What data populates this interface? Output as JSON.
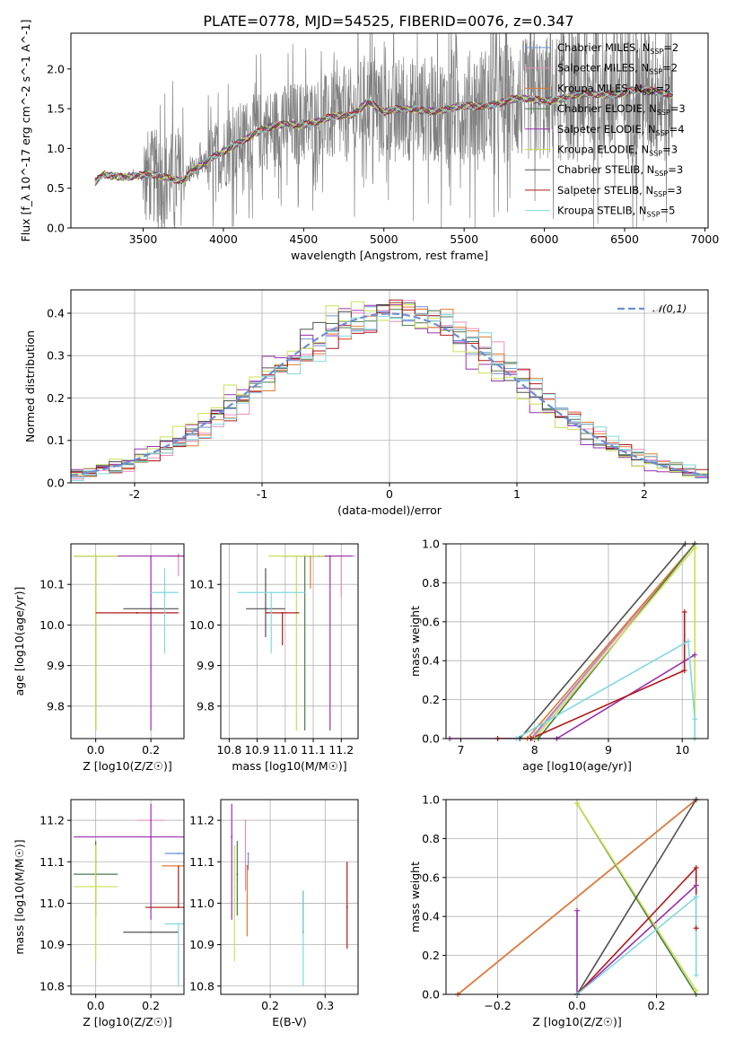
{
  "figure_title": "PLATE=0778, MJD=54525, FIBERID=0076, z=0.347",
  "models": [
    {
      "label": "Chabrier MILES, N",
      "sub": "SSP",
      "n": "=2",
      "color": "#6b8fd6"
    },
    {
      "label": "Salpeter MILES, N",
      "sub": "SSP",
      "n": "=2",
      "color": "#e88cc0"
    },
    {
      "label": "Kroupa MILES, N",
      "sub": "SSP",
      "n": "=2",
      "color": "#e07a2e"
    },
    {
      "label": "Chabrier ELODIE, N",
      "sub": "SSP",
      "n": "=3",
      "color": "#4a7a4a"
    },
    {
      "label": "Salpeter ELODIE, N",
      "sub": "SSP",
      "n": "=4",
      "color": "#9b30b0"
    },
    {
      "label": "Kroupa ELODIE, N",
      "sub": "SSP",
      "n": "=3",
      "color": "#c8e050"
    },
    {
      "label": "Chabrier STELIB, N",
      "sub": "SSP",
      "n": "=3",
      "color": "#505050"
    },
    {
      "label": "Salpeter STELIB, N",
      "sub": "SSP",
      "n": "=3",
      "color": "#b01818"
    },
    {
      "label": "Kroupa STELIB, N",
      "sub": "SSP",
      "n": "=5",
      "color": "#80d8e0"
    }
  ],
  "chart_data": [
    {
      "id": "spectrum",
      "type": "line",
      "xlabel": "wavelength [Angstrom, rest frame]",
      "ylabel": "Flux [f_λ 10^-17 erg cm^-2 s^-1 A^-1]",
      "xlim": [
        3050,
        7020
      ],
      "ylim": [
        0,
        2.45
      ],
      "xticks": [
        3500,
        4000,
        4500,
        5000,
        5500,
        6000,
        6500,
        7000
      ],
      "yticks": [
        0.0,
        0.5,
        1.0,
        1.5,
        2.0
      ],
      "data_color": "#808080",
      "data_range": [
        3200,
        6800
      ],
      "continuum": [
        [
          3200,
          0.55
        ],
        [
          3250,
          0.68
        ],
        [
          3400,
          0.66
        ],
        [
          3600,
          0.64
        ],
        [
          3750,
          0.62
        ],
        [
          3800,
          0.72
        ],
        [
          3900,
          0.82
        ],
        [
          4000,
          0.95
        ],
        [
          4100,
          1.1
        ],
        [
          4200,
          1.2
        ],
        [
          4400,
          1.3
        ],
        [
          4600,
          1.35
        ],
        [
          4800,
          1.42
        ],
        [
          4900,
          1.62
        ],
        [
          5000,
          1.45
        ],
        [
          5200,
          1.5
        ],
        [
          5400,
          1.48
        ],
        [
          5600,
          1.55
        ],
        [
          5800,
          1.6
        ],
        [
          6000,
          1.62
        ],
        [
          6200,
          1.65
        ],
        [
          6400,
          1.7
        ],
        [
          6600,
          1.72
        ],
        [
          6800,
          1.7
        ]
      ],
      "legend_location": "upper right"
    },
    {
      "id": "residuals",
      "type": "histogram",
      "xlabel": "(data-model)/error",
      "ylabel": "Normed distribution",
      "xlim": [
        -2.5,
        2.5
      ],
      "ylim": [
        0,
        0.455
      ],
      "xticks": [
        -2,
        -1,
        0,
        1,
        2
      ],
      "yticks": [
        0.0,
        0.1,
        0.2,
        0.3,
        0.4
      ],
      "bin_width": 0.1,
      "gaussian_label": "𝒩(0,1)",
      "gaussian_color": "#6b8fd6",
      "legend_location": "upper right"
    },
    {
      "id": "age_vs_Z",
      "type": "errorbar",
      "xlabel": "Z [log10(Z/Z☉)]",
      "ylabel": "age  [log10(age/yr)]",
      "xlim": [
        -0.09,
        0.32
      ],
      "ylim": [
        9.72,
        10.2
      ],
      "xticks": [
        0.0,
        0.2
      ],
      "xtick_labels": [
        "0.0",
        "0.2"
      ],
      "yticks": [
        9.8,
        9.9,
        10.0,
        10.1
      ],
      "ytick_labels": [
        "9.8",
        "9.9",
        "10.0",
        "10.1"
      ],
      "points": [
        {
          "model": 0,
          "x": 0.0,
          "xerr": 0.0,
          "y": 10.17,
          "yerr_low": 0.0,
          "yerr_high": 0.0
        },
        {
          "model": 1,
          "x": 0.3,
          "xerr": 0.03,
          "y": 10.17,
          "yerr_low": 0.05,
          "yerr_high": 0.005
        },
        {
          "model": 2,
          "x": 0.3,
          "xerr": 0.06,
          "y": 10.17,
          "yerr_low": 0.0,
          "yerr_high": 0.005
        },
        {
          "model": 3,
          "x": 0.0,
          "xerr": 0.08,
          "y": 10.17,
          "yerr_low": 0.43,
          "yerr_high": 0.0
        },
        {
          "model": 4,
          "x": 0.2,
          "xerr": 0.28,
          "y": 10.17,
          "yerr_low": 0.43,
          "yerr_high": 0.0
        },
        {
          "model": 5,
          "x": 0.0,
          "xerr": 0.08,
          "y": 10.17,
          "yerr_low": 0.43,
          "yerr_high": 0.0
        },
        {
          "model": 6,
          "x": 0.2,
          "xerr": 0.1,
          "y": 10.04,
          "yerr_low": 0.0,
          "yerr_high": 0.0
        },
        {
          "model": 7,
          "x": 0.15,
          "xerr": 0.15,
          "y": 10.03,
          "yerr_low": 0.0,
          "yerr_high": 0.0
        },
        {
          "model": 8,
          "x": 0.25,
          "xerr": 0.05,
          "y": 10.08,
          "yerr_low": 0.15,
          "yerr_high": 0.06
        }
      ]
    },
    {
      "id": "age_vs_mass",
      "type": "errorbar",
      "xlabel": "mass [log10(M/M☉)]",
      "ylabel": "",
      "xlim": [
        10.77,
        11.26
      ],
      "ylim": [
        9.72,
        10.2
      ],
      "xticks": [
        10.8,
        10.9,
        11.0,
        11.1,
        11.2
      ],
      "xtick_labels": [
        "10.8",
        "10.9",
        "11.0",
        "11.1",
        "11.2"
      ],
      "yticks": [
        9.8,
        9.9,
        10.0,
        10.1
      ],
      "ytick_labels": [
        "9.8",
        "9.9",
        "10.0",
        "10.1"
      ],
      "points": [
        {
          "model": 0,
          "x": 11.12,
          "xerr": 0.05,
          "y": 10.17,
          "yerr_low": 0.0,
          "yerr_high": 0.0
        },
        {
          "model": 1,
          "x": 11.2,
          "xerr": 0.05,
          "y": 10.17,
          "yerr_low": 0.1,
          "yerr_high": 0.0
        },
        {
          "model": 2,
          "x": 11.09,
          "xerr": 0.1,
          "y": 10.17,
          "yerr_low": 0.08,
          "yerr_high": 0.0
        },
        {
          "model": 3,
          "x": 11.07,
          "xerr": 0.08,
          "y": 10.17,
          "yerr_low": 0.43,
          "yerr_high": 0.0
        },
        {
          "model": 4,
          "x": 11.16,
          "xerr": 0.08,
          "y": 10.17,
          "yerr_low": 0.43,
          "yerr_high": 0.0
        },
        {
          "model": 5,
          "x": 11.04,
          "xerr": 0.1,
          "y": 10.17,
          "yerr_low": 0.43,
          "yerr_high": 0.0
        },
        {
          "model": 6,
          "x": 10.93,
          "xerr": 0.07,
          "y": 10.04,
          "yerr_low": 0.07,
          "yerr_high": 0.1
        },
        {
          "model": 7,
          "x": 10.99,
          "xerr": 0.06,
          "y": 10.03,
          "yerr_low": 0.08,
          "yerr_high": 0.0
        },
        {
          "model": 8,
          "x": 10.95,
          "xerr": 0.12,
          "y": 10.08,
          "yerr_low": 0.15,
          "yerr_high": 0.0
        }
      ]
    },
    {
      "id": "massweight_vs_age",
      "type": "line",
      "xlabel": "age  [log10(age/yr)]",
      "ylabel": "mass weight",
      "xlim": [
        6.8,
        10.35
      ],
      "ylim": [
        0,
        1.0
      ],
      "xticks": [
        7,
        8,
        9,
        10
      ],
      "xtick_labels": [
        "7",
        "8",
        "9",
        "10"
      ],
      "yticks": [
        0.0,
        0.2,
        0.4,
        0.6,
        0.8,
        1.0
      ],
      "ytick_labels": [
        "0.0",
        "0.2",
        "0.4",
        "0.6",
        "0.8",
        "1.0"
      ],
      "series": [
        {
          "model": 0,
          "x": [
            7.95,
            10.17
          ],
          "y": [
            0.0,
            1.0
          ]
        },
        {
          "model": 1,
          "x": [
            7.97,
            10.17
          ],
          "y": [
            0.0,
            1.0
          ]
        },
        {
          "model": 2,
          "x": [
            7.9,
            10.17
          ],
          "y": [
            0.0,
            1.0
          ]
        },
        {
          "model": 3,
          "x": [
            8.05,
            10.17
          ],
          "y": [
            0.0,
            1.0
          ]
        },
        {
          "model": 4,
          "x": [
            6.85,
            8.3,
            10.17
          ],
          "y": [
            0.0,
            0.0,
            0.43
          ]
        },
        {
          "model": 5,
          "x": [
            8.0,
            10.17,
            10.17
          ],
          "y": [
            0.0,
            0.98,
            0.0
          ]
        },
        {
          "model": 6,
          "x": [
            7.8,
            10.04
          ],
          "y": [
            0.0,
            1.0
          ]
        },
        {
          "model": 7,
          "x": [
            7.5,
            7.95,
            10.03,
            10.03
          ],
          "y": [
            0.0,
            0.0,
            0.35,
            0.65
          ]
        },
        {
          "model": 8,
          "x": [
            7.75,
            10.08,
            10.17,
            10.17
          ],
          "y": [
            0.0,
            0.5,
            0.1,
            0.0
          ]
        }
      ]
    },
    {
      "id": "mass_vs_Z",
      "type": "errorbar",
      "xlabel": "Z [log10(Z/Z☉)]",
      "ylabel": "mass [log10(M/M☉)]",
      "xlim": [
        -0.09,
        0.32
      ],
      "ylim": [
        10.78,
        11.25
      ],
      "xticks": [
        0.0,
        0.2
      ],
      "xtick_labels": [
        "0.0",
        "0.2"
      ],
      "yticks": [
        10.8,
        10.9,
        11.0,
        11.1,
        11.2
      ],
      "ytick_labels": [
        "10.8",
        "10.9",
        "11.0",
        "11.1",
        "11.2"
      ],
      "points": [
        {
          "model": 0,
          "x": 0.3,
          "xerr": 0.05,
          "y": 11.12,
          "yerr_low": 0.0,
          "yerr_high": 0.0
        },
        {
          "model": 1,
          "x": 0.2,
          "xerr": 0.05,
          "y": 11.2,
          "yerr_low": 0.0,
          "yerr_high": 0.0
        },
        {
          "model": 2,
          "x": 0.3,
          "xerr": 0.06,
          "y": 11.09,
          "yerr_low": 0.0,
          "yerr_high": 0.0
        },
        {
          "model": 3,
          "x": 0.0,
          "xerr": 0.08,
          "y": 11.07,
          "yerr_low": 0.1,
          "yerr_high": 0.08
        },
        {
          "model": 4,
          "x": 0.2,
          "xerr": 0.28,
          "y": 11.16,
          "yerr_low": 0.2,
          "yerr_high": 0.08
        },
        {
          "model": 5,
          "x": 0.0,
          "xerr": 0.08,
          "y": 11.04,
          "yerr_low": 0.18,
          "yerr_high": 0.1
        },
        {
          "model": 6,
          "x": 0.2,
          "xerr": 0.1,
          "y": 10.93,
          "yerr_low": 0.0,
          "yerr_high": 0.0
        },
        {
          "model": 7,
          "x": 0.3,
          "xerr": 0.12,
          "y": 10.99,
          "yerr_low": 0.0,
          "yerr_high": 0.1
        },
        {
          "model": 8,
          "x": 0.3,
          "xerr": 0.05,
          "y": 10.95,
          "yerr_low": 0.15,
          "yerr_high": 0.0
        }
      ]
    },
    {
      "id": "mass_vs_EBV",
      "type": "errorbar",
      "xlabel": "E(B-V)",
      "ylabel": "",
      "xlim": [
        0.11,
        0.36
      ],
      "ylim": [
        10.78,
        11.25
      ],
      "xticks": [
        0.2,
        0.3
      ],
      "xtick_labels": [
        "0.2",
        "0.3"
      ],
      "yticks": [
        10.8,
        10.9,
        11.0,
        11.1,
        11.2
      ],
      "ytick_labels": [
        "10.8",
        "10.9",
        "11.0",
        "11.1",
        "11.2"
      ],
      "points": [
        {
          "model": 0,
          "x": 0.16,
          "xerr": 0.0,
          "y": 11.12,
          "yerr_low": 0.04,
          "yerr_high": 0.0
        },
        {
          "model": 1,
          "x": 0.155,
          "xerr": 0.0,
          "y": 11.2,
          "yerr_low": 0.17,
          "yerr_high": 0.0
        },
        {
          "model": 2,
          "x": 0.158,
          "xerr": 0.0,
          "y": 11.09,
          "yerr_low": 0.17,
          "yerr_high": 0.0
        },
        {
          "model": 3,
          "x": 0.14,
          "xerr": 0.0,
          "y": 11.07,
          "yerr_low": 0.1,
          "yerr_high": 0.08
        },
        {
          "model": 4,
          "x": 0.13,
          "xerr": 0.0,
          "y": 11.16,
          "yerr_low": 0.2,
          "yerr_high": 0.08
        },
        {
          "model": 5,
          "x": 0.135,
          "xerr": 0.0,
          "y": 11.04,
          "yerr_low": 0.18,
          "yerr_high": 0.1
        },
        {
          "model": 6,
          "x": 0.26,
          "xerr": 0.0,
          "y": 10.93,
          "yerr_low": 0.0,
          "yerr_high": 0.1
        },
        {
          "model": 7,
          "x": 0.34,
          "xerr": 0.0,
          "y": 10.99,
          "yerr_low": 0.1,
          "yerr_high": 0.11
        },
        {
          "model": 8,
          "x": 0.26,
          "xerr": 0.0,
          "y": 10.95,
          "yerr_low": 0.15,
          "yerr_high": 0.08
        }
      ]
    },
    {
      "id": "massweight_vs_Z",
      "type": "line",
      "xlabel": "Z [log10(Z/Z☉)]",
      "ylabel": "mass weight",
      "xlim": [
        -0.33,
        0.33
      ],
      "ylim": [
        0,
        1.0
      ],
      "xticks": [
        -0.2,
        0.0,
        0.2
      ],
      "xtick_labels": [
        "−0.2",
        "0.0",
        "0.2"
      ],
      "yticks": [
        0.0,
        0.2,
        0.4,
        0.6,
        0.8,
        1.0
      ],
      "ytick_labels": [
        "0.0",
        "0.2",
        "0.4",
        "0.6",
        "0.8",
        "1.0"
      ],
      "series": [
        {
          "model": 0,
          "x": [
            -0.3,
            0.3
          ],
          "y": [
            0.0,
            1.0
          ]
        },
        {
          "model": 1,
          "x": [
            -0.3,
            0.3
          ],
          "y": [
            0.0,
            1.0
          ]
        },
        {
          "model": 2,
          "x": [
            -0.3,
            0.3
          ],
          "y": [
            0.0,
            1.0
          ]
        },
        {
          "model": 3,
          "x": [
            0.0,
            0.3
          ],
          "y": [
            0.98,
            0.0
          ]
        },
        {
          "model": 4,
          "x": [
            0.0,
            0.0,
            0.3
          ],
          "y": [
            0.43,
            0.0,
            0.56
          ]
        },
        {
          "model": 5,
          "x": [
            0.0,
            0.3
          ],
          "y": [
            0.98,
            0.02
          ]
        },
        {
          "model": 6,
          "x": [
            0.0,
            0.3
          ],
          "y": [
            0.0,
            1.0
          ]
        },
        {
          "model": 7,
          "x": [
            0.0,
            0.3,
            0.3
          ],
          "y": [
            0.0,
            0.65,
            0.34
          ]
        },
        {
          "model": 8,
          "x": [
            0.0,
            0.3,
            0.3
          ],
          "y": [
            0.0,
            0.5,
            0.1
          ]
        }
      ]
    }
  ]
}
